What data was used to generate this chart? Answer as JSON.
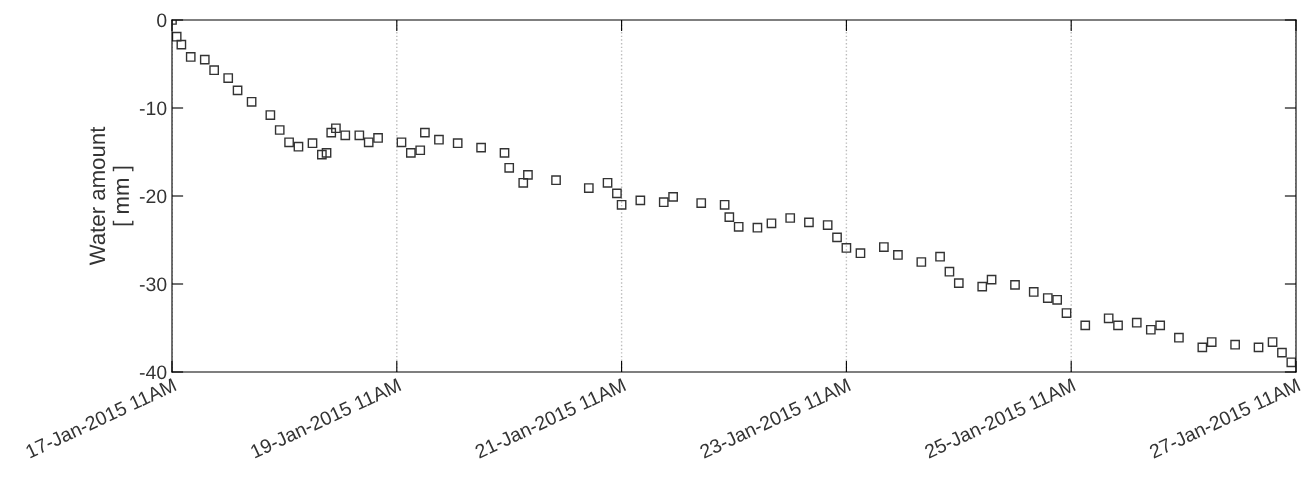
{
  "chart_data": {
    "type": "scatter",
    "ylabel": "Water amount\n[ mm ]",
    "marker": "square",
    "grid": "x",
    "xlim": [
      "2015-01-17T11:00",
      "2015-01-27T11:00"
    ],
    "xticks": [
      {
        "value": "2015-01-17T11:00",
        "label": "17-Jan-2015 11AM"
      },
      {
        "value": "2015-01-19T11:00",
        "label": "19-Jan-2015 11AM"
      },
      {
        "value": "2015-01-21T11:00",
        "label": "21-Jan-2015 11AM"
      },
      {
        "value": "2015-01-23T11:00",
        "label": "23-Jan-2015 11AM"
      },
      {
        "value": "2015-01-25T11:00",
        "label": "25-Jan-2015 11AM"
      },
      {
        "value": "2015-01-27T11:00",
        "label": "27-Jan-2015 11AM"
      }
    ],
    "ylim": [
      -40,
      0
    ],
    "yticks": [
      -40,
      -30,
      -20,
      -10,
      0
    ],
    "series": [
      {
        "color": "#333333",
        "x": [
          "2015-01-17T11:00",
          "2015-01-17T12:00",
          "2015-01-17T13:00",
          "2015-01-17T15:00",
          "2015-01-17T18:00",
          "2015-01-17T20:00",
          "2015-01-17T23:00",
          "2015-01-18T01:00",
          "2015-01-18T04:00",
          "2015-01-18T08:00",
          "2015-01-18T10:00",
          "2015-01-18T12:00",
          "2015-01-18T14:00",
          "2015-01-18T17:00",
          "2015-01-18T19:00",
          "2015-01-18T20:00",
          "2015-01-18T21:00",
          "2015-01-18T22:00",
          "2015-01-19T00:00",
          "2015-01-19T03:00",
          "2015-01-19T05:00",
          "2015-01-19T07:00",
          "2015-01-19T12:00",
          "2015-01-19T14:00",
          "2015-01-19T16:00",
          "2015-01-19T17:00",
          "2015-01-19T20:00",
          "2015-01-20T00:00",
          "2015-01-20T05:00",
          "2015-01-20T10:00",
          "2015-01-20T11:00",
          "2015-01-20T14:00",
          "2015-01-20T15:00",
          "2015-01-20T21:00",
          "2015-01-21T04:00",
          "2015-01-21T08:00",
          "2015-01-21T10:00",
          "2015-01-21T11:00",
          "2015-01-21T15:00",
          "2015-01-21T20:00",
          "2015-01-21T22:00",
          "2015-01-22T04:00",
          "2015-01-22T09:00",
          "2015-01-22T10:00",
          "2015-01-22T12:00",
          "2015-01-22T16:00",
          "2015-01-22T19:00",
          "2015-01-22T23:00",
          "2015-01-23T03:00",
          "2015-01-23T07:00",
          "2015-01-23T09:00",
          "2015-01-23T11:00",
          "2015-01-23T14:00",
          "2015-01-23T19:00",
          "2015-01-23T22:00",
          "2015-01-24T03:00",
          "2015-01-24T07:00",
          "2015-01-24T09:00",
          "2015-01-24T11:00",
          "2015-01-24T16:00",
          "2015-01-24T18:00",
          "2015-01-24T23:00",
          "2015-01-25T03:00",
          "2015-01-25T06:00",
          "2015-01-25T08:00",
          "2015-01-25T10:00",
          "2015-01-25T14:00",
          "2015-01-25T19:00",
          "2015-01-25T21:00",
          "2015-01-26T01:00",
          "2015-01-26T04:00",
          "2015-01-26T06:00",
          "2015-01-26T10:00",
          "2015-01-26T15:00",
          "2015-01-26T17:00",
          "2015-01-26T22:00",
          "2015-01-27T03:00",
          "2015-01-27T06:00",
          "2015-01-27T08:00",
          "2015-01-27T10:00"
        ],
        "values": [
          0,
          -1.9,
          -2.8,
          -4.2,
          -4.5,
          -5.7,
          -6.6,
          -8.0,
          -9.3,
          -10.8,
          -12.5,
          -13.9,
          -14.4,
          -14.0,
          -15.3,
          -15.1,
          -12.8,
          -12.3,
          -13.1,
          -13.1,
          -13.9,
          -13.4,
          -13.9,
          -15.1,
          -14.8,
          -12.8,
          -13.6,
          -14.0,
          -14.5,
          -15.1,
          -16.8,
          -18.5,
          -17.6,
          -18.2,
          -19.1,
          -18.5,
          -19.7,
          -21.0,
          -20.5,
          -20.7,
          -20.1,
          -20.8,
          -21.0,
          -22.4,
          -23.5,
          -23.6,
          -23.1,
          -22.5,
          -23.0,
          -23.3,
          -24.7,
          -25.9,
          -26.5,
          -25.8,
          -26.7,
          -27.5,
          -26.9,
          -28.6,
          -29.9,
          -30.3,
          -29.5,
          -30.1,
          -30.9,
          -31.6,
          -31.8,
          -33.3,
          -34.7,
          -33.9,
          -34.7,
          -34.4,
          -35.2,
          -34.7,
          -36.1,
          -37.2,
          -36.6,
          -36.9,
          -37.2,
          -36.6,
          -37.8,
          -38.9
        ]
      }
    ]
  }
}
